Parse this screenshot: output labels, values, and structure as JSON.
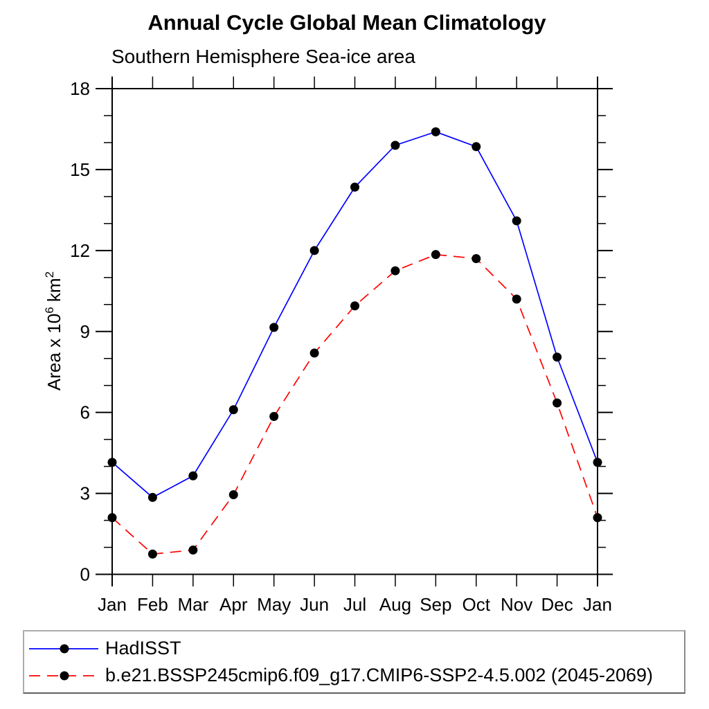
{
  "ylabel_parts": {
    "base1": "Area x 10",
    "sup1": "6",
    "base2": " km",
    "sup2": "2"
  },
  "chart_data": {
    "type": "line",
    "title": "Annual Cycle Global Mean Climatology",
    "subtitle": "Southern Hemisphere Sea-ice area",
    "ylabel": "Area x 10⁶ km²",
    "xlabel": "",
    "categories": [
      "Jan",
      "Feb",
      "Mar",
      "Apr",
      "May",
      "Jun",
      "Jul",
      "Aug",
      "Sep",
      "Oct",
      "Nov",
      "Dec",
      "Jan"
    ],
    "ylim": [
      0,
      18
    ],
    "yticks_major": [
      0,
      3,
      6,
      9,
      12,
      15,
      18
    ],
    "ytick_minor_step": 1,
    "grid": false,
    "legend_position": "bottom-left-box",
    "axis_color": "#000000",
    "marker": "filled-circle",
    "marker_color": "#000000",
    "series": [
      {
        "name": "HadISST",
        "color": "#0000ff",
        "line_style": "solid",
        "values": [
          4.15,
          2.85,
          3.65,
          6.1,
          9.15,
          12.0,
          14.35,
          15.9,
          16.4,
          15.85,
          13.1,
          8.05,
          4.15
        ]
      },
      {
        "name": "b.e21.BSSP245cmip6.f09_g17.CMIP6-SSP2-4.5.002 (2045-2069)",
        "color": "#ff0000",
        "line_style": "dashed",
        "values": [
          2.1,
          0.75,
          0.9,
          2.95,
          5.85,
          8.2,
          9.95,
          11.25,
          11.85,
          11.7,
          10.2,
          6.35,
          2.1
        ]
      }
    ]
  }
}
